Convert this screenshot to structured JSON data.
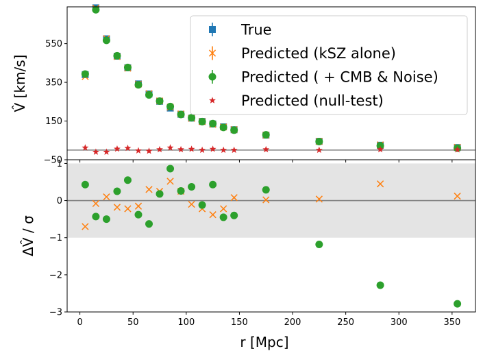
{
  "chart_data": [
    {
      "panel": "top",
      "type": "scatter",
      "ylabel": "V̂ [km/s]",
      "ylabel_main": "V̂",
      "ylabel_unit": " [km/s]",
      "xlim": [
        -12,
        372
      ],
      "ylim": [
        -50,
        740
      ],
      "yticks": [
        -50,
        150,
        350,
        550
      ],
      "reference_line_y": 0,
      "legend": {
        "position": "top-right",
        "entries": [
          "True",
          "Predicted (kSZ alone)",
          "Predicted ( + CMB & Noise)",
          "Predicted (null-test)"
        ]
      },
      "series": [
        {
          "name": "True",
          "marker": "square",
          "color": "#1f77b4",
          "x": [
            5,
            15,
            25,
            35,
            45,
            55,
            65,
            75,
            85,
            95,
            105,
            115,
            125,
            135,
            145,
            175,
            225,
            282.5,
            355
          ],
          "y": [
            390,
            735,
            575,
            485,
            425,
            342,
            290,
            252,
            217,
            185,
            165,
            148,
            135,
            120,
            105,
            77,
            45,
            25,
            13
          ]
        },
        {
          "name": "Predicted (kSZ alone)",
          "marker": "x",
          "color": "#ff7f0e",
          "x": [
            5,
            15,
            25,
            35,
            45,
            55,
            65,
            75,
            85,
            95,
            105,
            115,
            125,
            135,
            145,
            175,
            225,
            282.5,
            355
          ],
          "y": [
            380,
            733,
            576,
            483,
            423,
            341,
            292,
            254,
            222,
            187,
            164,
            147,
            133,
            119,
            106,
            77,
            45,
            27,
            14
          ]
        },
        {
          "name": "Predicted ( + CMB & Noise)",
          "marker": "circle",
          "color": "#2ca02c",
          "x": [
            5,
            15,
            25,
            35,
            45,
            55,
            65,
            75,
            85,
            95,
            105,
            115,
            125,
            135,
            145,
            175,
            225,
            282.5,
            355
          ],
          "y": [
            393,
            725,
            567,
            487,
            427,
            337,
            285,
            253,
            225,
            184,
            167,
            147,
            137,
            117,
            103,
            79,
            44,
            22,
            10
          ]
        },
        {
          "name": "Predicted (null-test)",
          "marker": "star",
          "color": "#d62728",
          "x": [
            5,
            15,
            25,
            35,
            45,
            55,
            65,
            75,
            85,
            95,
            105,
            115,
            125,
            135,
            145,
            175,
            225,
            282.5,
            355
          ],
          "y": [
            12,
            -10,
            -10,
            6,
            10,
            -3,
            -5,
            3,
            12,
            3,
            5,
            0,
            5,
            0,
            0,
            3,
            0,
            3,
            2
          ]
        }
      ]
    },
    {
      "panel": "bottom",
      "type": "scatter",
      "xlabel": "r [Mpc]",
      "ylabel": "ΔV̂ / σ",
      "ylabel_main": "ΔV̂",
      "ylabel_unit": " / σ",
      "xlim": [
        -12,
        372
      ],
      "ylim": [
        -3,
        1.1
      ],
      "xticks": [
        0,
        50,
        100,
        150,
        200,
        250,
        300,
        350
      ],
      "yticks": [
        -3,
        -2,
        -1,
        0,
        1
      ],
      "shaded_band": [
        -1,
        1
      ],
      "reference_line_y": 0,
      "series": [
        {
          "name": "Predicted (kSZ alone)",
          "marker": "x",
          "color": "#ff7f0e",
          "x": [
            5,
            15,
            25,
            35,
            45,
            55,
            65,
            75,
            85,
            95,
            105,
            115,
            125,
            135,
            145,
            175,
            225,
            282.5,
            355
          ],
          "y": [
            -0.7,
            -0.08,
            0.1,
            -0.18,
            -0.22,
            -0.15,
            0.3,
            0.25,
            0.52,
            0.25,
            -0.1,
            -0.22,
            -0.38,
            -0.22,
            0.08,
            0.02,
            0.04,
            0.45,
            0.12
          ]
        },
        {
          "name": "Predicted ( + CMB & Noise)",
          "marker": "circle",
          "color": "#2ca02c",
          "x": [
            5,
            15,
            25,
            35,
            45,
            55,
            65,
            75,
            85,
            95,
            105,
            115,
            125,
            135,
            145,
            175,
            225,
            282.5,
            355
          ],
          "y": [
            0.43,
            -0.43,
            -0.5,
            0.25,
            0.55,
            -0.38,
            -0.63,
            0.18,
            0.86,
            0.26,
            0.37,
            -0.12,
            0.43,
            -0.45,
            -0.4,
            0.29,
            -1.18,
            -2.28,
            -2.78
          ]
        }
      ]
    }
  ]
}
